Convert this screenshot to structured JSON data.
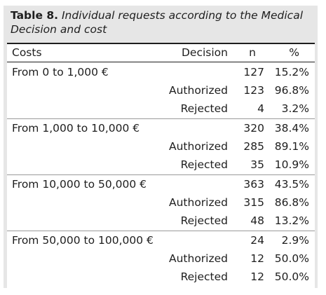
{
  "caption": {
    "label": "Table 8.",
    "text": "Individual requests according to the Medical Decision and cost"
  },
  "columns": {
    "costs": "Costs",
    "decision": "Decision",
    "n": "n",
    "pct": "%"
  },
  "groups": [
    {
      "cost": "From 0 to 1,000 €",
      "n": "127",
      "pct": "15.2%",
      "rows": [
        {
          "decision": "Authorized",
          "n": "123",
          "pct": "96.8%"
        },
        {
          "decision": "Rejected",
          "n": "4",
          "pct": "3.2%"
        }
      ]
    },
    {
      "cost": "From 1,000 to 10,000 €",
      "n": "320",
      "pct": "38.4%",
      "rows": [
        {
          "decision": "Authorized",
          "n": "285",
          "pct": "89.1%"
        },
        {
          "decision": "Rejected",
          "n": "35",
          "pct": "10.9%"
        }
      ]
    },
    {
      "cost": "From 10,000 to 50,000 €",
      "n": "363",
      "pct": "43.5%",
      "rows": [
        {
          "decision": "Authorized",
          "n": "315",
          "pct": "86.8%"
        },
        {
          "decision": "Rejected",
          "n": "48",
          "pct": "13.2%"
        }
      ]
    },
    {
      "cost": "From 50,000 to 100,000 €",
      "n": "24",
      "pct": "2.9%",
      "rows": [
        {
          "decision": "Authorized",
          "n": "12",
          "pct": "50.0%"
        },
        {
          "decision": "Rejected",
          "n": "12",
          "pct": "50.0%"
        }
      ]
    }
  ]
}
